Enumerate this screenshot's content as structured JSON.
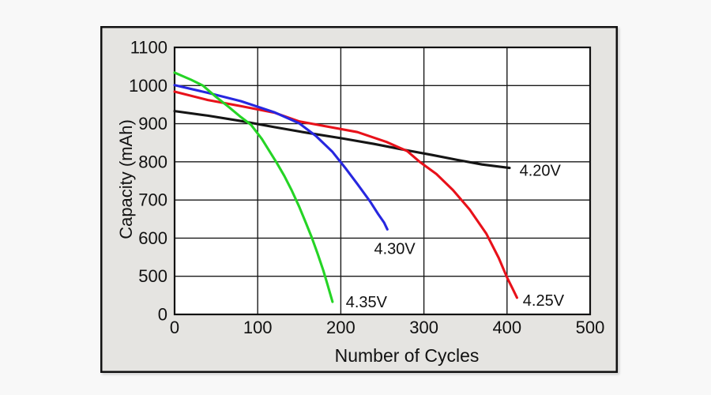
{
  "page": {
    "background": "#f8f8f8"
  },
  "panel": {
    "background": "#e5e4e1",
    "border_color": "#111111",
    "plot_background": "#ffffff",
    "grid_color": "#1a1a1a"
  },
  "chart_data": {
    "type": "line",
    "title": "",
    "xlabel": "Number of Cycles",
    "ylabel": "Capacity (mAh)",
    "grid": true,
    "legend_position": "inline-labels",
    "xlim": [
      0,
      500
    ],
    "x_ticks": [
      "0",
      "100",
      "200",
      "300",
      "400",
      "500"
    ],
    "x_tick_values": [
      0,
      100,
      200,
      300,
      400,
      500
    ],
    "y_tick_labels": [
      "1100",
      "1000",
      "900",
      "800",
      "700",
      "600",
      "500",
      "0"
    ],
    "y_tick_positions": [
      1100,
      1000,
      900,
      800,
      700,
      600,
      500,
      400
    ],
    "y_axis_note": "broken axis: bottom gridline is labeled 0 but sits one grid step below 500",
    "ylim_visual": [
      400,
      1100
    ],
    "series": [
      {
        "name": "4.20V",
        "color": "#151515",
        "label": {
          "x": 415,
          "y": 778
        },
        "points": [
          [
            0,
            933
          ],
          [
            40,
            921
          ],
          [
            80,
            907
          ],
          [
            120,
            891
          ],
          [
            160,
            876
          ],
          [
            200,
            862
          ],
          [
            240,
            847
          ],
          [
            280,
            830
          ],
          [
            310,
            818
          ],
          [
            340,
            805
          ],
          [
            370,
            793
          ],
          [
            403,
            784
          ]
        ]
      },
      {
        "name": "4.25V",
        "color": "#e8111a",
        "label": {
          "x": 419,
          "y": 437
        },
        "points": [
          [
            0,
            984
          ],
          [
            40,
            962
          ],
          [
            80,
            946
          ],
          [
            120,
            929
          ],
          [
            150,
            906
          ],
          [
            180,
            894
          ],
          [
            220,
            878
          ],
          [
            255,
            852
          ],
          [
            280,
            828
          ],
          [
            295,
            800
          ],
          [
            315,
            768
          ],
          [
            335,
            726
          ],
          [
            355,
            675
          ],
          [
            375,
            612
          ],
          [
            390,
            548
          ],
          [
            400,
            497
          ],
          [
            407,
            466
          ],
          [
            412,
            444
          ]
        ]
      },
      {
        "name": "4.30V",
        "color": "#2727df",
        "label": {
          "x": 240,
          "y": 573
        },
        "points": [
          [
            0,
            1001
          ],
          [
            40,
            981
          ],
          [
            80,
            959
          ],
          [
            120,
            930
          ],
          [
            150,
            901
          ],
          [
            170,
            868
          ],
          [
            190,
            826
          ],
          [
            205,
            785
          ],
          [
            220,
            742
          ],
          [
            235,
            697
          ],
          [
            245,
            663
          ],
          [
            252,
            641
          ],
          [
            256,
            623
          ]
        ]
      },
      {
        "name": "4.35V",
        "color": "#25d425",
        "label": {
          "x": 206,
          "y": 433
        },
        "points": [
          [
            0,
            1034
          ],
          [
            20,
            1015
          ],
          [
            34,
            1000
          ],
          [
            50,
            970
          ],
          [
            65,
            944
          ],
          [
            80,
            917
          ],
          [
            92,
            897
          ],
          [
            105,
            860
          ],
          [
            115,
            825
          ],
          [
            123,
            797
          ],
          [
            132,
            763
          ],
          [
            141,
            725
          ],
          [
            150,
            682
          ],
          [
            158,
            640
          ],
          [
            165,
            602
          ],
          [
            172,
            560
          ],
          [
            179,
            515
          ],
          [
            184,
            478
          ],
          [
            190,
            433
          ]
        ]
      }
    ]
  }
}
